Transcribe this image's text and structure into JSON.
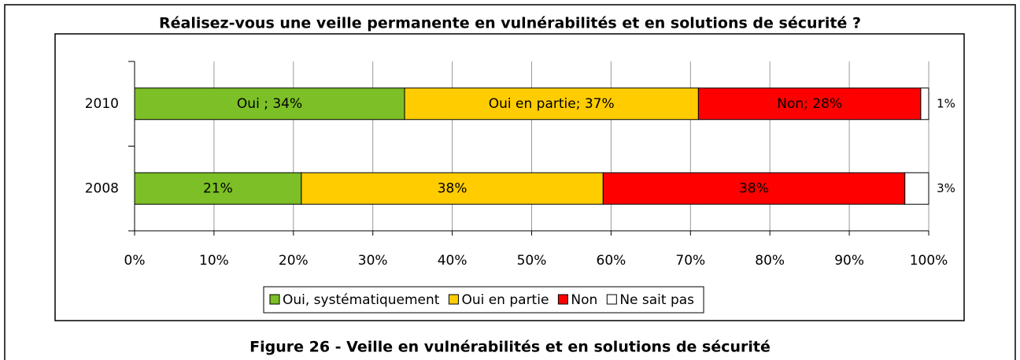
{
  "chart_data": {
    "type": "stacked_barh",
    "title": "Réalisez-vous une veille permanente en vulnérabilités et en solutions de sécurité ?",
    "categories": [
      "2010",
      "2008"
    ],
    "series": [
      {
        "name": "Oui, systématiquement",
        "color": "#7cbf26",
        "values": [
          34,
          21
        ],
        "value_labels": [
          "Oui ; 34%",
          "21%"
        ]
      },
      {
        "name": "Oui en partie",
        "color": "#ffcc00",
        "values": [
          37,
          38
        ],
        "value_labels": [
          "Oui en partie; 37%",
          "38%"
        ]
      },
      {
        "name": "Non",
        "color": "#ff0000",
        "values": [
          28,
          38
        ],
        "value_labels": [
          "Non; 28%",
          "38%"
        ]
      },
      {
        "name": "Ne sait pas",
        "color": "#ffffff",
        "values": [
          1,
          3
        ],
        "value_labels": [
          "1%",
          "3%"
        ]
      }
    ],
    "xlim": [
      0,
      100
    ],
    "xticks": [
      {
        "value": 0,
        "label": "0%"
      },
      {
        "value": 10,
        "label": "10%"
      },
      {
        "value": 20,
        "label": "20%"
      },
      {
        "value": 30,
        "label": "30%"
      },
      {
        "value": 40,
        "label": "40%"
      },
      {
        "value": 50,
        "label": "50%"
      },
      {
        "value": 60,
        "label": "60%"
      },
      {
        "value": 70,
        "label": "70%"
      },
      {
        "value": 80,
        "label": "80%"
      },
      {
        "value": 90,
        "label": "90%"
      },
      {
        "value": 100,
        "label": "100%"
      }
    ],
    "grid": true,
    "legend": "bottom"
  },
  "figure_caption": "Figure 26 - Veille en vulnérabilités et en solutions de sécurité"
}
